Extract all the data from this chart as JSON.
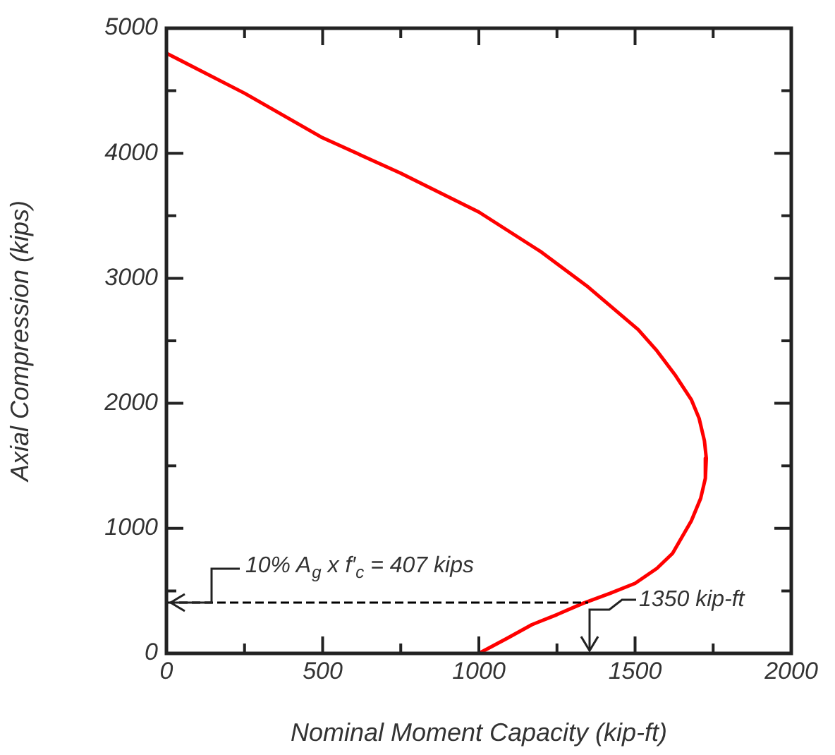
{
  "chart_data": {
    "type": "line",
    "xlabel": "Nominal Moment Capacity (kip-ft)",
    "ylabel": "Axial Compression (kips)",
    "xlim": [
      0,
      2000
    ],
    "ylim": [
      0,
      5000
    ],
    "xticks": [
      0,
      {
        "value": 250,
        "label": null
      },
      500,
      {
        "value": 750,
        "label": null
      },
      1000,
      {
        "value": 1250,
        "label": null
      },
      1500,
      {
        "value": 1750,
        "label": null
      },
      2000
    ],
    "yticks": [
      0,
      {
        "value": 500,
        "label": null
      },
      1000,
      {
        "value": 1500,
        "label": null
      },
      2000,
      {
        "value": 2500,
        "label": null
      },
      3000,
      {
        "value": 3500,
        "label": null
      },
      4000,
      {
        "value": 4500,
        "label": null
      },
      5000
    ],
    "grid": false,
    "legend": false,
    "marker": "none",
    "series": [
      {
        "color": "#ff0000",
        "line_style": "solid",
        "x": [
          0,
          250,
          495,
          750,
          1000,
          1200,
          1350,
          1510,
          1570,
          1630,
          1680,
          1705,
          1722,
          1728,
          1725,
          1710,
          1680,
          1620,
          1570,
          1500,
          1420,
          1333,
          1250,
          1170,
          1090,
          1000
        ],
        "values": [
          4800,
          4480,
          4130,
          3840,
          3530,
          3210,
          2930,
          2590,
          2420,
          2220,
          2030,
          1880,
          1700,
          1560,
          1400,
          1240,
          1060,
          800,
          680,
          560,
          480,
          400,
          310,
          230,
          120,
          0
        ]
      },
      {
        "color": "#000000",
        "line_style": "dashed",
        "x": [
          0,
          1350
        ],
        "values": [
          407,
          407
        ]
      }
    ],
    "annotations": [
      {
        "text": "10% A$_{g}$ x f′$_{c}$ = 407 kips",
        "x": 0,
        "y": 407
      },
      {
        "text": "1350 kip-ft",
        "x": 1350,
        "y": 407
      }
    ]
  }
}
